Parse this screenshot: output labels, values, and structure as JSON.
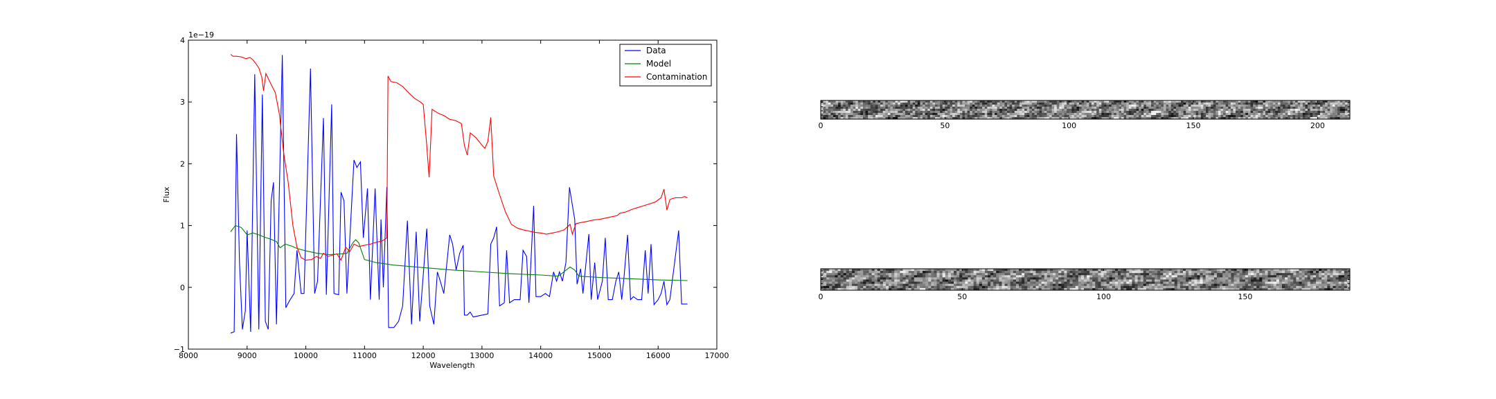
{
  "chart_data": [
    {
      "type": "line",
      "xlabel": "Wavelength",
      "ylabel": "Flux",
      "y_scale_label": "1e−19",
      "xlim": [
        8000,
        17000
      ],
      "ylim": [
        -1,
        4
      ],
      "x_ticks": [
        8000,
        9000,
        10000,
        11000,
        12000,
        13000,
        14000,
        15000,
        16000,
        17000
      ],
      "y_ticks": [
        -1,
        0,
        1,
        2,
        3,
        4
      ],
      "grid": false,
      "legend_position": "top-right",
      "series": [
        {
          "name": "Data",
          "color": "#0000ff",
          "points": [
            [
              8720,
              -0.74
            ],
            [
              8780,
              -0.72
            ],
            [
              8820,
              2.48
            ],
            [
              8870,
              0.4
            ],
            [
              8920,
              -0.68
            ],
            [
              8970,
              -0.38
            ],
            [
              9000,
              0.92
            ],
            [
              9060,
              -0.72
            ],
            [
              9130,
              3.45
            ],
            [
              9200,
              -0.68
            ],
            [
              9260,
              3.12
            ],
            [
              9310,
              -0.55
            ],
            [
              9360,
              -0.68
            ],
            [
              9410,
              1.4
            ],
            [
              9450,
              1.7
            ],
            [
              9500,
              -0.6
            ],
            [
              9600,
              3.76
            ],
            [
              9660,
              -0.33
            ],
            [
              9720,
              -0.22
            ],
            [
              9800,
              -0.1
            ],
            [
              9850,
              0.6
            ],
            [
              9920,
              -0.1
            ],
            [
              9970,
              -0.1
            ],
            [
              10080,
              3.54
            ],
            [
              10150,
              -0.1
            ],
            [
              10200,
              0.1
            ],
            [
              10300,
              2.74
            ],
            [
              10350,
              -0.12
            ],
            [
              10440,
              2.96
            ],
            [
              10480,
              -0.1
            ],
            [
              10560,
              -0.12
            ],
            [
              10600,
              1.54
            ],
            [
              10650,
              1.4
            ],
            [
              10700,
              -0.1
            ],
            [
              10820,
              2.06
            ],
            [
              10870,
              1.94
            ],
            [
              10930,
              2.03
            ],
            [
              10980,
              0.8
            ],
            [
              11050,
              1.6
            ],
            [
              11100,
              -0.2
            ],
            [
              11180,
              1.6
            ],
            [
              11250,
              -0.2
            ],
            [
              11280,
              1.1
            ],
            [
              11320,
              0.0
            ],
            [
              11380,
              1.62
            ],
            [
              11410,
              -0.65
            ],
            [
              11500,
              -0.65
            ],
            [
              11580,
              -0.55
            ],
            [
              11650,
              -0.3
            ],
            [
              11730,
              1.08
            ],
            [
              11800,
              -0.6
            ],
            [
              11880,
              0.9
            ],
            [
              11940,
              -0.55
            ],
            [
              12000,
              0.2
            ],
            [
              12060,
              0.95
            ],
            [
              12110,
              -0.3
            ],
            [
              12180,
              -0.6
            ],
            [
              12240,
              0.25
            ],
            [
              12290,
              0.1
            ],
            [
              12350,
              -0.1
            ],
            [
              12450,
              0.85
            ],
            [
              12500,
              0.7
            ],
            [
              12560,
              0.28
            ],
            [
              12620,
              0.55
            ],
            [
              12680,
              0.68
            ],
            [
              12700,
              -0.45
            ],
            [
              12750,
              -0.45
            ],
            [
              12800,
              -0.4
            ],
            [
              12850,
              -0.48
            ],
            [
              13000,
              -0.45
            ],
            [
              13100,
              -0.43
            ],
            [
              13150,
              0.7
            ],
            [
              13200,
              0.8
            ],
            [
              13250,
              0.98
            ],
            [
              13300,
              -0.3
            ],
            [
              13380,
              -0.25
            ],
            [
              13420,
              0.6
            ],
            [
              13470,
              -0.25
            ],
            [
              13550,
              -0.2
            ],
            [
              13650,
              -0.2
            ],
            [
              13700,
              0.6
            ],
            [
              13760,
              0.5
            ],
            [
              13800,
              -0.25
            ],
            [
              13880,
              1.32
            ],
            [
              13920,
              -0.15
            ],
            [
              14000,
              -0.15
            ],
            [
              14080,
              -0.1
            ],
            [
              14150,
              -0.15
            ],
            [
              14220,
              0.25
            ],
            [
              14270,
              0.1
            ],
            [
              14320,
              0.25
            ],
            [
              14370,
              0.1
            ],
            [
              14430,
              0.4
            ],
            [
              14490,
              1.62
            ],
            [
              14580,
              1.1
            ],
            [
              14620,
              0.05
            ],
            [
              14680,
              0.3
            ],
            [
              14720,
              -0.1
            ],
            [
              14820,
              0.86
            ],
            [
              14860,
              -0.2
            ],
            [
              14920,
              0.4
            ],
            [
              14970,
              -0.2
            ],
            [
              15050,
              0.1
            ],
            [
              15100,
              0.8
            ],
            [
              15150,
              -0.2
            ],
            [
              15220,
              -0.2
            ],
            [
              15280,
              0.1
            ],
            [
              15330,
              0.25
            ],
            [
              15380,
              -0.2
            ],
            [
              15420,
              0.18
            ],
            [
              15480,
              0.85
            ],
            [
              15530,
              -0.2
            ],
            [
              15580,
              -0.15
            ],
            [
              15650,
              -0.2
            ],
            [
              15720,
              -0.2
            ],
            [
              15780,
              0.6
            ],
            [
              15830,
              -0.1
            ],
            [
              15880,
              0.7
            ],
            [
              15930,
              -0.28
            ],
            [
              16000,
              -0.2
            ],
            [
              16050,
              -0.1
            ],
            [
              16100,
              0.1
            ],
            [
              16150,
              -0.28
            ],
            [
              16200,
              -0.2
            ],
            [
              16280,
              0.4
            ],
            [
              16350,
              0.92
            ],
            [
              16400,
              -0.27
            ],
            [
              16500,
              -0.27
            ]
          ]
        },
        {
          "name": "Model",
          "color": "#008000",
          "points": [
            [
              8720,
              0.9
            ],
            [
              8800,
              1.0
            ],
            [
              8900,
              0.97
            ],
            [
              9000,
              0.85
            ],
            [
              9100,
              0.88
            ],
            [
              9200,
              0.85
            ],
            [
              9300,
              0.81
            ],
            [
              9400,
              0.78
            ],
            [
              9500,
              0.74
            ],
            [
              9560,
              0.64
            ],
            [
              9650,
              0.7
            ],
            [
              9750,
              0.67
            ],
            [
              9850,
              0.63
            ],
            [
              10000,
              0.59
            ],
            [
              10200,
              0.55
            ],
            [
              10400,
              0.53
            ],
            [
              10600,
              0.54
            ],
            [
              10700,
              0.55
            ],
            [
              10800,
              0.72
            ],
            [
              10850,
              0.77
            ],
            [
              10900,
              0.72
            ],
            [
              11000,
              0.45
            ],
            [
              11200,
              0.4
            ],
            [
              11500,
              0.36
            ],
            [
              12000,
              0.32
            ],
            [
              12500,
              0.28
            ],
            [
              13000,
              0.25
            ],
            [
              13500,
              0.22
            ],
            [
              14000,
              0.2
            ],
            [
              14300,
              0.18
            ],
            [
              14500,
              0.33
            ],
            [
              14580,
              0.28
            ],
            [
              14650,
              0.18
            ],
            [
              15000,
              0.16
            ],
            [
              15500,
              0.14
            ],
            [
              16000,
              0.12
            ],
            [
              16500,
              0.11
            ]
          ]
        },
        {
          "name": "Contamination",
          "color": "#ff0000",
          "points": [
            [
              8720,
              3.77
            ],
            [
              8760,
              3.74
            ],
            [
              8820,
              3.74
            ],
            [
              8900,
              3.73
            ],
            [
              8980,
              3.7
            ],
            [
              9050,
              3.72
            ],
            [
              9100,
              3.68
            ],
            [
              9150,
              3.62
            ],
            [
              9200,
              3.55
            ],
            [
              9250,
              3.4
            ],
            [
              9280,
              3.18
            ],
            [
              9320,
              3.46
            ],
            [
              9400,
              3.3
            ],
            [
              9480,
              3.15
            ],
            [
              9550,
              2.8
            ],
            [
              9620,
              2.2
            ],
            [
              9700,
              1.7
            ],
            [
              9780,
              1.0
            ],
            [
              9850,
              0.65
            ],
            [
              9920,
              0.48
            ],
            [
              10000,
              0.44
            ],
            [
              10100,
              0.45
            ],
            [
              10180,
              0.5
            ],
            [
              10250,
              0.47
            ],
            [
              10300,
              0.55
            ],
            [
              10380,
              0.5
            ],
            [
              10450,
              0.52
            ],
            [
              10530,
              0.54
            ],
            [
              10600,
              0.44
            ],
            [
              10680,
              0.65
            ],
            [
              10750,
              0.58
            ],
            [
              10820,
              0.7
            ],
            [
              10900,
              0.66
            ],
            [
              11000,
              0.68
            ],
            [
              11100,
              0.7
            ],
            [
              11200,
              0.73
            ],
            [
              11300,
              0.75
            ],
            [
              11380,
              0.8
            ],
            [
              11400,
              3.42
            ],
            [
              11450,
              3.33
            ],
            [
              11550,
              3.31
            ],
            [
              11650,
              3.25
            ],
            [
              11750,
              3.15
            ],
            [
              11850,
              3.06
            ],
            [
              11950,
              3.0
            ],
            [
              12000,
              2.96
            ],
            [
              12050,
              2.4
            ],
            [
              12100,
              1.78
            ],
            [
              12150,
              2.88
            ],
            [
              12250,
              2.82
            ],
            [
              12350,
              2.78
            ],
            [
              12450,
              2.72
            ],
            [
              12550,
              2.7
            ],
            [
              12650,
              2.65
            ],
            [
              12700,
              2.3
            ],
            [
              12750,
              2.14
            ],
            [
              12800,
              2.5
            ],
            [
              12900,
              2.42
            ],
            [
              13000,
              2.3
            ],
            [
              13050,
              2.25
            ],
            [
              13100,
              2.36
            ],
            [
              13150,
              2.75
            ],
            [
              13200,
              1.8
            ],
            [
              13300,
              1.5
            ],
            [
              13400,
              1.22
            ],
            [
              13500,
              1.02
            ],
            [
              13600,
              0.96
            ],
            [
              13700,
              0.93
            ],
            [
              13800,
              0.91
            ],
            [
              13900,
              0.89
            ],
            [
              14000,
              0.88
            ],
            [
              14100,
              0.86
            ],
            [
              14200,
              0.88
            ],
            [
              14300,
              0.9
            ],
            [
              14400,
              0.93
            ],
            [
              14500,
              1.02
            ],
            [
              14540,
              0.86
            ],
            [
              14600,
              1.03
            ],
            [
              14700,
              1.05
            ],
            [
              14800,
              1.07
            ],
            [
              14900,
              1.09
            ],
            [
              15000,
              1.1
            ],
            [
              15100,
              1.12
            ],
            [
              15200,
              1.14
            ],
            [
              15300,
              1.16
            ],
            [
              15350,
              1.2
            ],
            [
              15450,
              1.22
            ],
            [
              15550,
              1.26
            ],
            [
              15650,
              1.29
            ],
            [
              15750,
              1.32
            ],
            [
              15850,
              1.35
            ],
            [
              15950,
              1.38
            ],
            [
              16050,
              1.45
            ],
            [
              16100,
              1.59
            ],
            [
              16150,
              1.25
            ],
            [
              16200,
              1.42
            ],
            [
              16250,
              1.44
            ],
            [
              16300,
              1.45
            ],
            [
              16400,
              1.45
            ],
            [
              16450,
              1.47
            ],
            [
              16500,
              1.45
            ]
          ]
        }
      ]
    },
    {
      "type": "heatmap",
      "x_ticks": [
        0,
        50,
        100,
        150,
        200
      ],
      "xlim": [
        0,
        213
      ],
      "colormap": "grayscale"
    },
    {
      "type": "heatmap",
      "x_ticks": [
        0,
        50,
        100,
        150
      ],
      "xlim": [
        0,
        187
      ],
      "colormap": "grayscale"
    }
  ]
}
